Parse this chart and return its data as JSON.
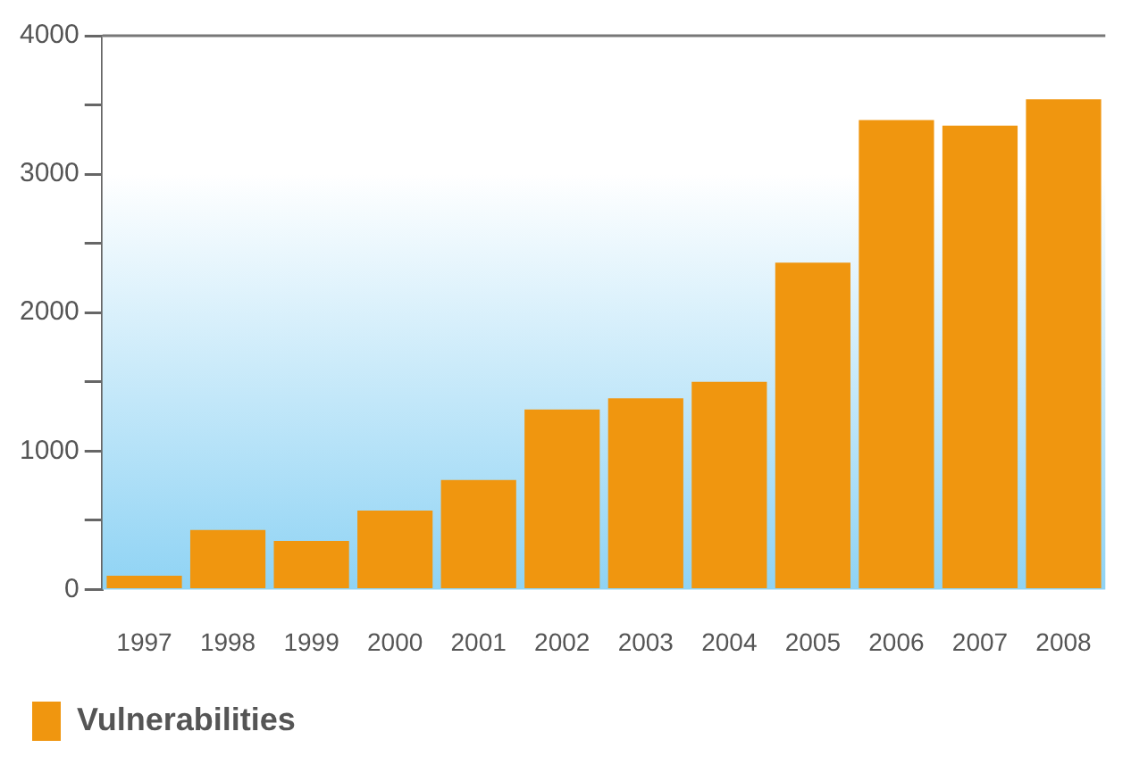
{
  "chart_data": {
    "type": "bar",
    "categories": [
      "1997",
      "1998",
      "1999",
      "2000",
      "2001",
      "2002",
      "2003",
      "2004",
      "2005",
      "2006",
      "2007",
      "2008"
    ],
    "series": [
      {
        "name": "Vulnerabilities",
        "color": "#f0960f",
        "values": [
          100,
          430,
          350,
          570,
          790,
          1300,
          1380,
          1500,
          2360,
          3390,
          3350,
          3540
        ]
      }
    ],
    "ylim": [
      0,
      4000
    ],
    "yticks": [
      0,
      {
        "value": 500,
        "label": null
      },
      1000,
      {
        "value": 1500,
        "label": null
      },
      2000,
      {
        "value": 2500,
        "label": null
      },
      3000,
      {
        "value": 3500,
        "label": null
      },
      4000
    ],
    "grid": false,
    "legend": "bottom left"
  }
}
